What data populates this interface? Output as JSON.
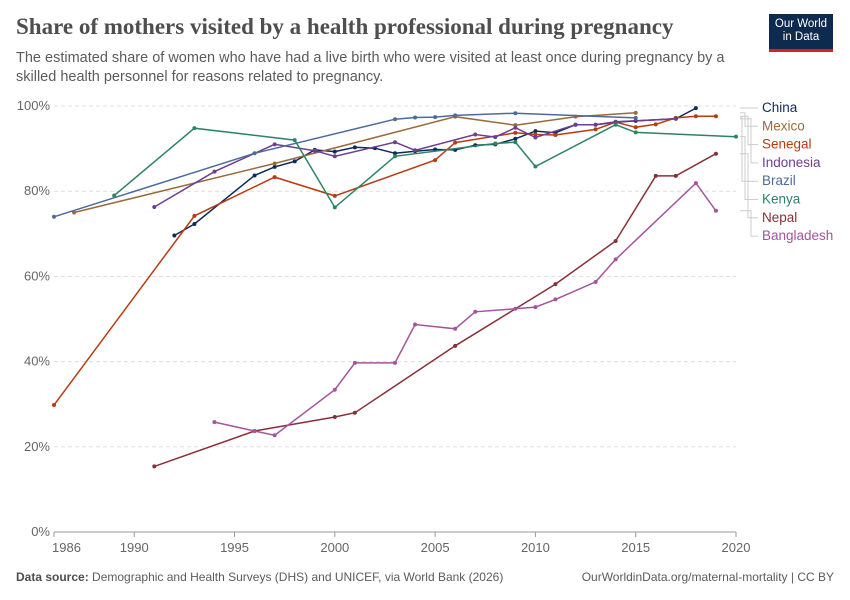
{
  "header": {
    "title": "Share of mothers visited by a health professional during pregnancy",
    "subtitle": "The estimated share of women who have had a live birth who were visited at least once during pregnancy by a skilled health personnel for reasons related to pregnancy.",
    "logo": "Our World in Data"
  },
  "footer": {
    "source_label": "Data source:",
    "source": "Demographic and Health Surveys (DHS) and UNICEF, via World Bank (2026)",
    "url": "OurWorldinData.org/maternal-mortality | CC BY"
  },
  "chart_data": {
    "type": "line",
    "title": "Share of mothers visited by a health professional during pregnancy",
    "xlabel": "",
    "ylabel": "",
    "xlim": [
      1986,
      2020
    ],
    "ylim": [
      0,
      100
    ],
    "x_ticks": [
      1986,
      1990,
      1995,
      2000,
      2005,
      2010,
      2015,
      2020
    ],
    "y_ticks": [
      "0%",
      "20%",
      "40%",
      "60%",
      "80%",
      "100%"
    ],
    "y_tick_values": [
      0,
      20,
      40,
      60,
      80,
      100
    ],
    "grid": true,
    "legend_placement": "right",
    "series": [
      {
        "name": "China",
        "color": "#0d2a5b",
        "x": [
          1992,
          1993,
          1996,
          1997,
          1998,
          1999,
          2000,
          2001,
          2002,
          2003,
          2004,
          2005,
          2006,
          2007,
          2008,
          2009,
          2010,
          2011,
          2012,
          2013,
          2014,
          2015,
          2017,
          2018
        ],
        "values": [
          69.6,
          72.3,
          83.7,
          85.7,
          87,
          89.7,
          89.3,
          90.3,
          90.1,
          88.9,
          89.4,
          89.8,
          89.7,
          90.8,
          91,
          92.3,
          94.1,
          93.7,
          95.6,
          95.6,
          96.2,
          96.5,
          97,
          99.5
        ]
      },
      {
        "name": "Mexico",
        "color": "#9a6a3a",
        "x": [
          1987,
          1997,
          2006,
          2009,
          2012,
          2015
        ],
        "values": [
          75,
          86.5,
          97.5,
          95.5,
          97.5,
          98.4
        ]
      },
      {
        "name": "Senegal",
        "color": "#b83c12",
        "x": [
          1986,
          1993,
          1997,
          2000,
          2005,
          2006,
          2009,
          2010,
          2011,
          2013,
          2014,
          2015,
          2016,
          2017,
          2018,
          2019
        ],
        "values": [
          29.8,
          74.2,
          83.3,
          78.9,
          87.3,
          91.4,
          93.7,
          93.3,
          93.2,
          94.5,
          96.2,
          95,
          95.7,
          97.2,
          97.6,
          97.6
        ]
      },
      {
        "name": "Indonesia",
        "color": "#6d3e91",
        "x": [
          1991,
          1994,
          1997,
          1999,
          2000,
          2003,
          2004,
          2007,
          2008,
          2009,
          2010,
          2012,
          2013,
          2014,
          2017
        ],
        "values": [
          76.3,
          84.6,
          91,
          89.5,
          88.2,
          91.5,
          89.6,
          93.3,
          92.7,
          94.9,
          92.6,
          95.6,
          95.6,
          96.3,
          97
        ]
      },
      {
        "name": "Brazil",
        "color": "#4c6a9c",
        "x": [
          1986,
          1996,
          2003,
          2004,
          2005,
          2006,
          2009,
          2015
        ],
        "values": [
          74,
          88.9,
          96.9,
          97.3,
          97.4,
          97.8,
          98.3,
          97.2
        ]
      },
      {
        "name": "Kenya",
        "color": "#2c8465",
        "x": [
          1989,
          1993,
          1998,
          2000,
          2003,
          2008,
          2009,
          2010,
          2014,
          2015,
          2020
        ],
        "values": [
          79,
          94.8,
          92,
          76.2,
          88.2,
          91.2,
          91.5,
          85.8,
          95.6,
          93.8,
          92.8
        ]
      },
      {
        "name": "Nepal",
        "color": "#883039",
        "x": [
          1991,
          1996,
          2000,
          2001,
          2006,
          2011,
          2014,
          2016,
          2017,
          2019
        ],
        "values": [
          15.4,
          23.7,
          27,
          28,
          43.7,
          58.2,
          68.3,
          83.6,
          83.6,
          88.8
        ]
      },
      {
        "name": "Bangladesh",
        "color": "#a2559c",
        "x": [
          1994,
          1996,
          1997,
          2000,
          2001,
          2003,
          2004,
          2006,
          2007,
          2009,
          2010,
          2011,
          2013,
          2014,
          2018,
          2019
        ],
        "values": [
          25.8,
          23.7,
          22.7,
          33.4,
          39.7,
          39.7,
          48.7,
          47.7,
          51.7,
          52.4,
          52.8,
          54.6,
          58.7,
          64,
          81.9,
          75.4
        ]
      }
    ]
  }
}
